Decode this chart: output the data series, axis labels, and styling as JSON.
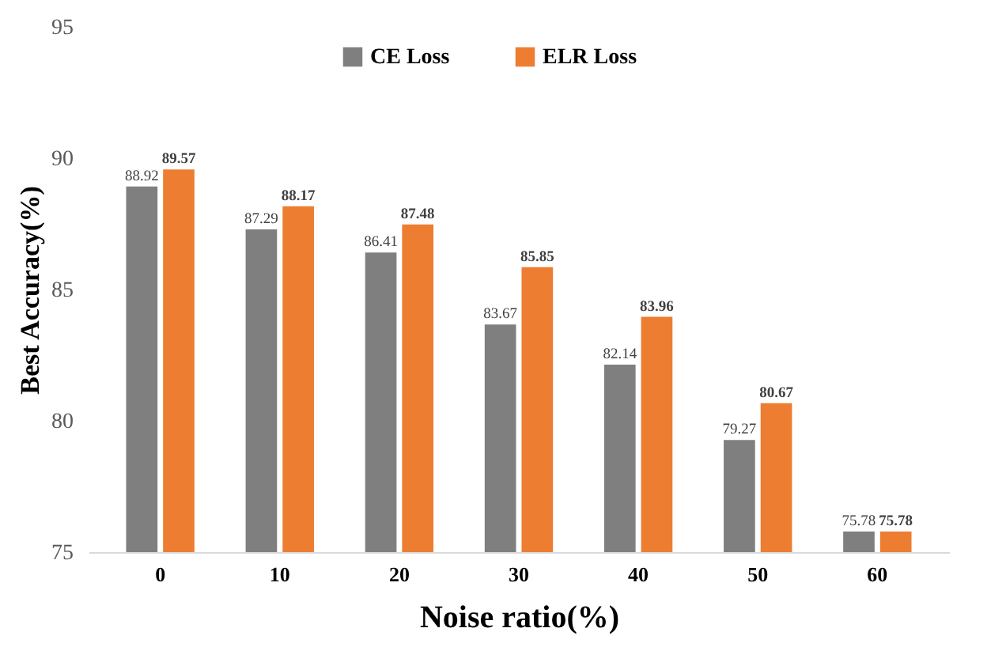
{
  "chart_data": {
    "type": "bar",
    "xlabel": "Noise ratio(%)",
    "ylabel": "Best Accuracy(%)",
    "categories": [
      "0",
      "10",
      "20",
      "30",
      "40",
      "50",
      "60"
    ],
    "series": [
      {
        "name": "CE Loss",
        "color": "#7f7f7f",
        "values": [
          88.92,
          87.29,
          86.41,
          83.67,
          82.14,
          79.27,
          75.78
        ]
      },
      {
        "name": "ELR Loss",
        "color": "#ed7d31",
        "values": [
          89.57,
          88.17,
          87.48,
          85.85,
          83.96,
          80.67,
          75.78
        ]
      }
    ],
    "ylim": [
      75,
      95
    ],
    "yticks": [
      75,
      80,
      85,
      90,
      95
    ],
    "grid": false,
    "legend": "top",
    "data_labels": true
  }
}
